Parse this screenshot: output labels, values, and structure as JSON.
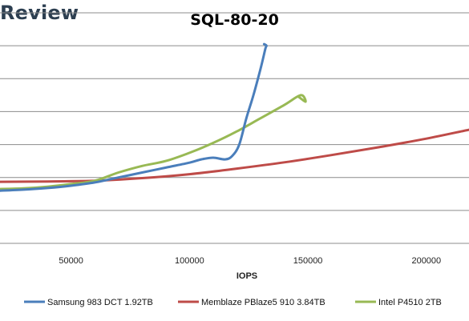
{
  "brand": "Review",
  "chart_data": {
    "type": "line",
    "title": "SQL-80-20",
    "xlabel": "IOPS",
    "ylabel": "",
    "xlim": [
      20000,
      218000
    ],
    "ylim": [
      0,
      7
    ],
    "x_ticks": [
      50000,
      100000,
      150000,
      200000
    ],
    "x_tick_labels": [
      "50000",
      "100000",
      "150000",
      "200000"
    ],
    "y_gridlines": [
      1,
      2,
      3,
      4,
      5,
      6,
      7
    ],
    "grid": true,
    "legend_position": "bottom",
    "series": [
      {
        "name": "Samsung 983 DCT 1.92TB",
        "color": "#4a7ebb",
        "x": [
          20000,
          30000,
          40000,
          50000,
          60000,
          70000,
          80000,
          90000,
          100000,
          105000,
          110000,
          115000,
          118000,
          121000,
          124000,
          127000,
          130000,
          132000,
          132500,
          131500
        ],
        "y": [
          1.6,
          1.63,
          1.68,
          1.75,
          1.85,
          2.0,
          2.15,
          2.3,
          2.45,
          2.55,
          2.6,
          2.55,
          2.65,
          3.0,
          3.8,
          4.5,
          5.3,
          5.9,
          6.0,
          6.05
        ]
      },
      {
        "name": "Memblaze PBlaze5 910 3.84TB",
        "color": "#be4b48",
        "x": [
          20000,
          40000,
          60000,
          80000,
          100000,
          120000,
          140000,
          160000,
          180000,
          200000,
          218000
        ],
        "y": [
          1.87,
          1.88,
          1.9,
          1.98,
          2.1,
          2.27,
          2.46,
          2.68,
          2.92,
          3.18,
          3.45
        ]
      },
      {
        "name": "Intel P4510 2TB",
        "color": "#98b954",
        "x": [
          20000,
          30000,
          40000,
          50000,
          60000,
          70000,
          80000,
          90000,
          100000,
          110000,
          120000,
          130000,
          140000,
          147000,
          149000,
          146000
        ],
        "y": [
          1.65,
          1.67,
          1.72,
          1.8,
          1.9,
          2.15,
          2.35,
          2.5,
          2.75,
          3.05,
          3.4,
          3.8,
          4.2,
          4.5,
          4.3,
          4.45
        ]
      }
    ]
  }
}
